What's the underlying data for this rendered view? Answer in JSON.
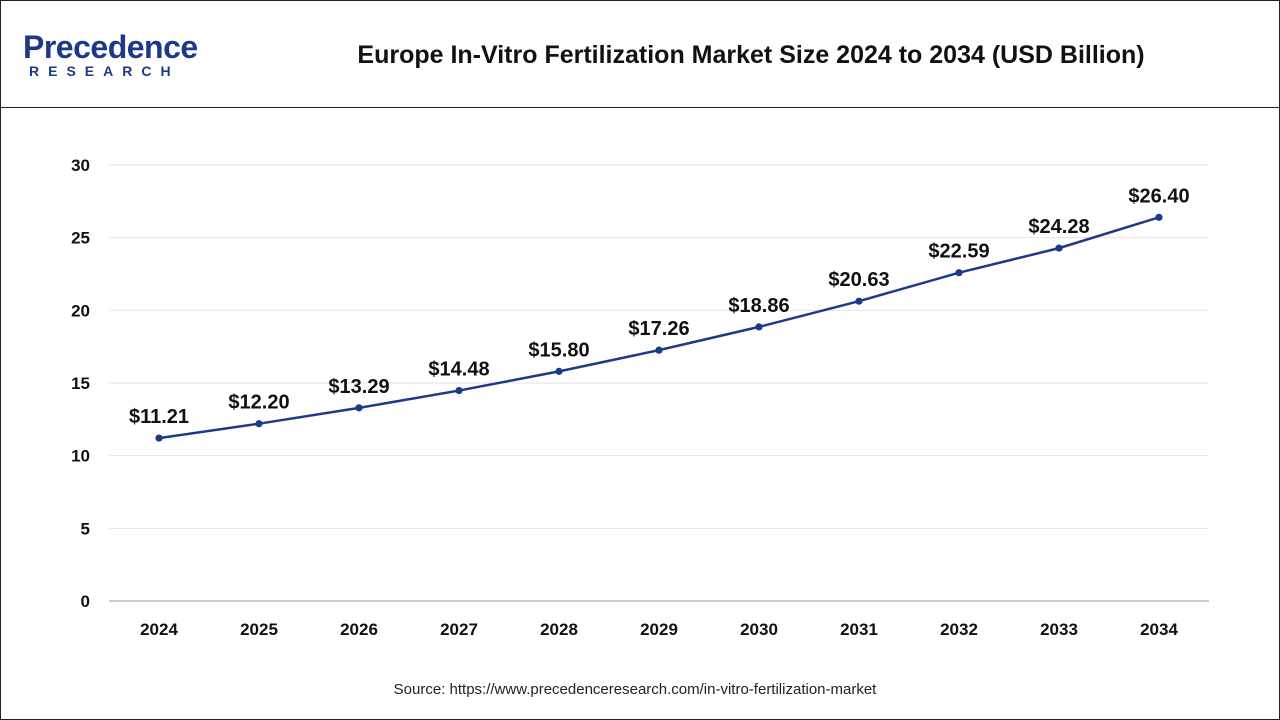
{
  "header": {
    "logo_word": "Precedence",
    "logo_sub": "RESEARCH",
    "title": "Europe In-Vitro Fertilization Market Size 2024 to 2034 (USD Billion)"
  },
  "footer": {
    "source": "Source: https://www.precedenceresearch.com/in-vitro-fertilization-market"
  },
  "colors": {
    "line": "#1d3a8a",
    "grid": "#e6e6e6",
    "text": "#111111"
  },
  "chart_data": {
    "type": "line",
    "title": "Europe In-Vitro Fertilization Market Size 2024 to 2034 (USD Billion)",
    "xlabel": "",
    "ylabel": "",
    "ylim": [
      0,
      30
    ],
    "yticks": [
      0,
      5,
      10,
      15,
      20,
      25,
      30
    ],
    "grid": true,
    "categories": [
      "2024",
      "2025",
      "2026",
      "2027",
      "2028",
      "2029",
      "2030",
      "2031",
      "2032",
      "2033",
      "2034"
    ],
    "values": [
      11.21,
      12.2,
      13.29,
      14.48,
      15.8,
      17.26,
      18.86,
      20.63,
      22.59,
      24.28,
      26.4
    ],
    "data_labels": [
      "$11.21",
      "$12.20",
      "$13.29",
      "$14.48",
      "$15.80",
      "$17.26",
      "$18.86",
      "$20.63",
      "$22.59",
      "$24.28",
      "$26.40"
    ]
  }
}
